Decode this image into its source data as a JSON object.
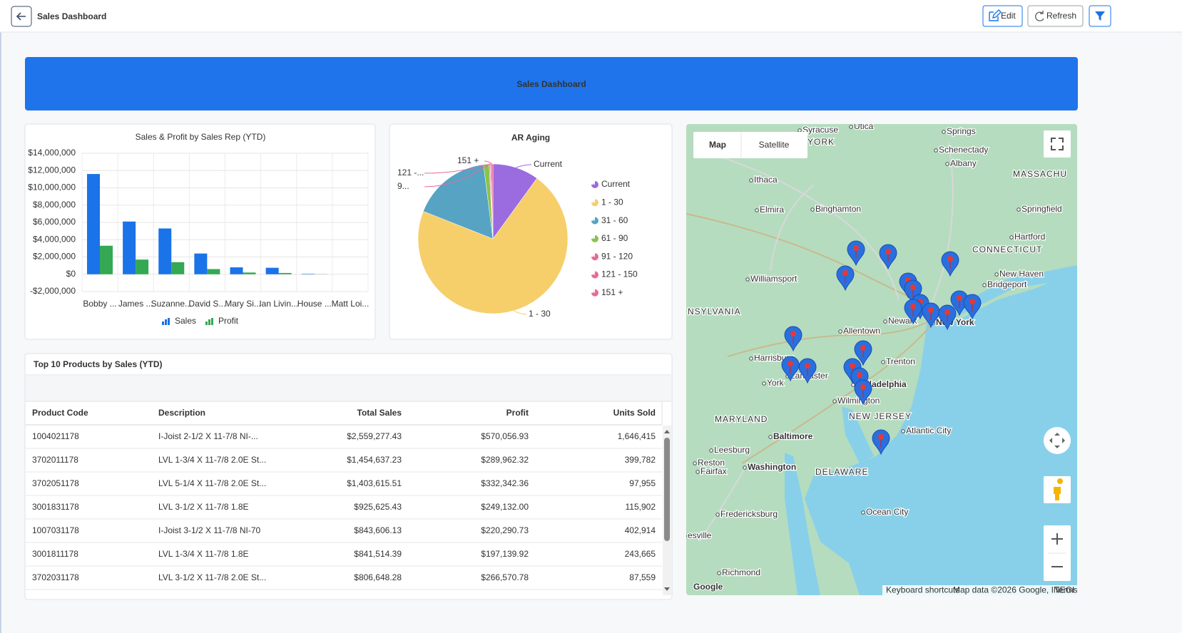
{
  "header": {
    "title": "Sales Dashboard",
    "buttons": [
      "Edit",
      "Refresh"
    ]
  },
  "banner": {
    "title": "Sales Dashboard"
  },
  "chart_data": [
    {
      "type": "bar",
      "title": "Sales & Profit by Sales Rep (YTD)",
      "categories": [
        "Bobby ...",
        "James ...",
        "Suzanne...",
        "David S...",
        "Mary Si...",
        "Ian Livin...",
        "House ...",
        "Matt Loi..."
      ],
      "series": [
        {
          "name": "Sales",
          "color": "#1a73e8",
          "values": [
            11600000,
            6100000,
            5300000,
            2400000,
            800000,
            750000,
            50000,
            0
          ]
        },
        {
          "name": "Profit",
          "color": "#34a853",
          "values": [
            3300000,
            1700000,
            1400000,
            600000,
            200000,
            150000,
            20000,
            0
          ]
        }
      ],
      "ylim": [
        -2000000,
        14000000
      ],
      "yticks": [
        {
          "value": -2000000,
          "label": "-$2,000,000"
        },
        {
          "value": 0,
          "label": "$0"
        },
        {
          "value": 2000000,
          "label": "$2,000,000"
        },
        {
          "value": 4000000,
          "label": "$4,000,000"
        },
        {
          "value": 6000000,
          "label": "$6,000,000"
        },
        {
          "value": 8000000,
          "label": "$8,000,000"
        },
        {
          "value": 10000000,
          "label": "$10,000,000"
        },
        {
          "value": 12000000,
          "label": "$12,000,000"
        },
        {
          "value": 14000000,
          "label": "$14,000,000"
        }
      ],
      "grid": true,
      "legend": "bottom"
    },
    {
      "type": "pie",
      "title": "AR Aging",
      "categories": [
        "Current",
        "1 - 30",
        "31 - 60",
        "61 - 90",
        "91 - 120",
        "121 - 150",
        "151 +"
      ],
      "values": [
        10,
        71,
        17,
        1.2,
        0.2,
        0.2,
        0.4
      ],
      "colors": [
        "#9b6be0",
        "#f6cf6b",
        "#56a3c4",
        "#8bc34a",
        "#e8699a",
        "#e8699a",
        "#e8699a"
      ],
      "slice_labels": [
        "Current",
        "1 - 30",
        null,
        null,
        "9...",
        "121 -...",
        "151 +"
      ],
      "legend": "right"
    }
  ],
  "table": {
    "title": "Top 10 Products by Sales (YTD)",
    "columns": [
      "Product Code",
      "Description",
      "Total Sales",
      "Profit",
      "Units Sold"
    ],
    "rows": [
      [
        "1004021178",
        "I-Joist 2-1/2 X 11-7/8 NI-...",
        "$2,559,277.43",
        "$570,056.93",
        "1,646,415"
      ],
      [
        "3702011178",
        "LVL 1-3/4 X 11-7/8 2.0E St...",
        "$1,454,637.23",
        "$289,962.32",
        "399,782"
      ],
      [
        "3702051178",
        "LVL 5-1/4 X 11-7/8 2.0E St...",
        "$1,403,615.51",
        "$332,342.36",
        "97,955"
      ],
      [
        "3001831178",
        "LVL 3-1/2 X 11-7/8 1.8E",
        "$925,625.43",
        "$249,132.00",
        "115,902"
      ],
      [
        "1007031178",
        "I-Joist 3-1/2 X 11-7/8 NI-70",
        "$843,606.13",
        "$220,290.73",
        "402,914"
      ],
      [
        "3001811178",
        "LVL 1-3/4 X 11-7/8 1.8E",
        "$841,514.39",
        "$197,139.92",
        "243,665"
      ],
      [
        "3702031178",
        "LVL 3-1/2 X 11-7/8 2.0E St...",
        "$806,648.28",
        "$266,570.78",
        "87,559"
      ]
    ]
  },
  "map": {
    "tabs": [
      "Map",
      "Satellite"
    ],
    "labels": [
      "Syracuse",
      "Utica",
      "Springs",
      "YORK",
      "Schenectady",
      "Albany",
      "MASSACHU",
      "Ithaca",
      "Binghamton",
      "Elmira",
      "Springfield",
      "Hartford",
      "CONNECTICUT",
      "New Haven",
      "Bridgeport",
      "Williamsport",
      "NSYLVANIA",
      "Newark",
      "New York",
      "Allentown",
      "Harrisburg",
      "Trenton",
      "Lancaster",
      "York",
      "Philadelphia",
      "Wilmington",
      "NEW JERSEY",
      "MARYLAND",
      "Baltimore",
      "Atlantic City",
      "Leesburg",
      "Washington",
      "Reston",
      "Fairfax",
      "DELAWARE",
      "Fredericksburg",
      "Ocean City",
      "esville",
      "Richmond"
    ],
    "attribution": [
      "Keyboard shortcuts",
      "Map data ©2026 Google, INEGI",
      "Terms"
    ],
    "logo": "Google"
  }
}
